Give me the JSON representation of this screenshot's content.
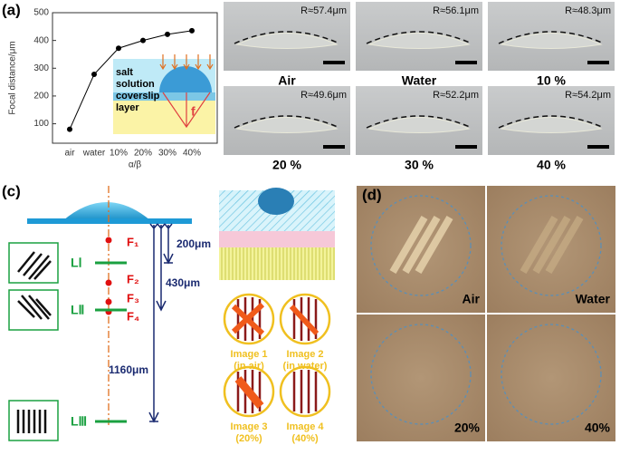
{
  "chart_data": {
    "type": "line",
    "panel_label": "(a)",
    "ylabel": "Focal distance/μm",
    "xlabel": "α/β",
    "categories": [
      "air",
      "water",
      "10%",
      "20%",
      "30%",
      "40%"
    ],
    "values": [
      80,
      278,
      372,
      400,
      422,
      435
    ],
    "color": "#000000",
    "ylim": [
      30,
      500
    ],
    "yticks": [
      100,
      200,
      300,
      400,
      500
    ],
    "inset": [
      "salt",
      "solution",
      "coverslip",
      "layer",
      "f"
    ]
  },
  "panel_b": {
    "label": "(b)",
    "images": [
      {
        "radius": "R≈57.4μm",
        "caption": "Air"
      },
      {
        "radius": "R≈56.1μm",
        "caption": "Water"
      },
      {
        "radius": "R≈48.3μm",
        "caption": "10 %"
      },
      {
        "radius": "R≈49.6μm",
        "caption": "20 %"
      },
      {
        "radius": "R≈52.2μm",
        "caption": "30 %"
      },
      {
        "radius": "R≈54.2μm",
        "caption": "40 %"
      }
    ]
  },
  "panel_c": {
    "label": "(c)",
    "foci": [
      "F₁",
      "F₂",
      "F₃",
      "F₄"
    ],
    "layers": [
      "LⅠ",
      "LⅡ",
      "LⅢ"
    ],
    "distances": [
      "200μm",
      "430μm",
      "1160μm"
    ],
    "images": [
      [
        "Image 1",
        "(in air)"
      ],
      [
        "Image 2",
        "(in water)"
      ],
      [
        "Image 3",
        "(20%)"
      ],
      [
        "Image 4",
        "(40%)"
      ]
    ]
  },
  "panel_d": {
    "label": "(d)",
    "images": [
      "Air",
      "Water",
      "20%",
      "40%"
    ]
  }
}
